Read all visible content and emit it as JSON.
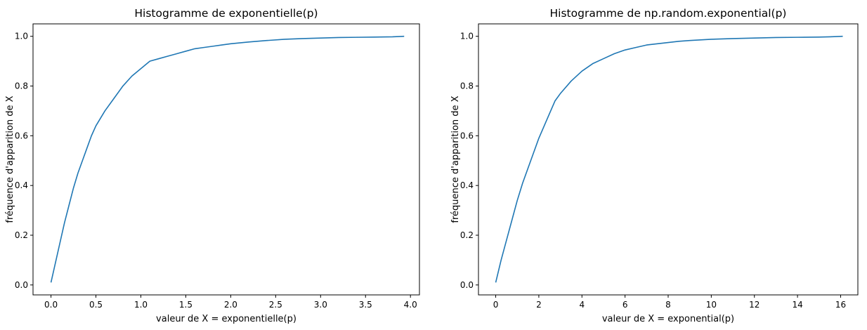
{
  "chart_data": [
    {
      "type": "line",
      "title": "Histogramme de exponentielle(p)",
      "xlabel": "valeur de X = exponentielle(p)",
      "ylabel": "fréquence d'apparition de X",
      "xlim": [
        -0.2,
        4.1
      ],
      "ylim": [
        -0.04,
        1.05
      ],
      "xticks": [
        "0.0",
        "0.5",
        "1.0",
        "1.5",
        "2.0",
        "2.5",
        "3.0",
        "3.5",
        "4.0"
      ],
      "xtick_values": [
        0,
        0.5,
        1.0,
        1.5,
        2.0,
        2.5,
        3.0,
        3.5,
        4.0
      ],
      "yticks": [
        "0.0",
        "0.2",
        "0.4",
        "0.6",
        "0.8",
        "1.0"
      ],
      "ytick_values": [
        0,
        0.2,
        0.4,
        0.6,
        0.8,
        1.0
      ],
      "grid": false,
      "series": [
        {
          "color": "#1f77b4",
          "x": [
            0.0,
            0.05,
            0.1,
            0.15,
            0.2,
            0.25,
            0.3,
            0.35,
            0.4,
            0.45,
            0.5,
            0.55,
            0.6,
            0.7,
            0.8,
            0.9,
            1.0,
            1.1,
            1.2,
            1.3,
            1.4,
            1.5,
            1.6,
            1.7,
            1.8,
            1.9,
            2.0,
            2.2,
            2.4,
            2.6,
            2.8,
            3.0,
            3.2,
            3.4,
            3.6,
            3.8,
            3.93
          ],
          "y": [
            0.01,
            0.09,
            0.17,
            0.25,
            0.32,
            0.39,
            0.45,
            0.5,
            0.55,
            0.6,
            0.64,
            0.67,
            0.7,
            0.75,
            0.8,
            0.84,
            0.87,
            0.9,
            0.91,
            0.92,
            0.93,
            0.94,
            0.95,
            0.955,
            0.96,
            0.965,
            0.97,
            0.977,
            0.983,
            0.988,
            0.991,
            0.993,
            0.995,
            0.996,
            0.997,
            0.998,
            1.0
          ]
        }
      ]
    },
    {
      "type": "line",
      "title": "Histogramme de np.random.exponential(p)",
      "xlabel": "valeur de X = exponential(p)",
      "ylabel": "fréquence d'apparition de X",
      "xlim": [
        -0.8,
        16.8
      ],
      "ylim": [
        -0.04,
        1.05
      ],
      "xticks": [
        "0",
        "2",
        "4",
        "6",
        "8",
        "10",
        "12",
        "14",
        "16"
      ],
      "xtick_values": [
        0,
        2,
        4,
        6,
        8,
        10,
        12,
        14,
        16
      ],
      "yticks": [
        "0.0",
        "0.2",
        "0.4",
        "0.6",
        "0.8",
        "1.0"
      ],
      "ytick_values": [
        0,
        0.2,
        0.4,
        0.6,
        0.8,
        1.0
      ],
      "grid": false,
      "series": [
        {
          "color": "#1f77b4",
          "x": [
            0.0,
            0.25,
            0.5,
            0.75,
            1.0,
            1.25,
            1.5,
            1.75,
            2.0,
            2.25,
            2.5,
            2.75,
            3.0,
            3.5,
            4.0,
            4.5,
            5.0,
            5.5,
            6.0,
            6.5,
            7.0,
            7.5,
            8.0,
            8.5,
            9.0,
            10.0,
            11.0,
            12.0,
            13.0,
            14.0,
            15.0,
            15.5,
            16.1
          ],
          "y": [
            0.01,
            0.1,
            0.18,
            0.26,
            0.34,
            0.41,
            0.47,
            0.53,
            0.59,
            0.64,
            0.69,
            0.74,
            0.77,
            0.82,
            0.86,
            0.89,
            0.91,
            0.93,
            0.945,
            0.955,
            0.965,
            0.97,
            0.975,
            0.98,
            0.983,
            0.988,
            0.991,
            0.993,
            0.995,
            0.996,
            0.997,
            0.998,
            1.0
          ]
        }
      ]
    }
  ]
}
